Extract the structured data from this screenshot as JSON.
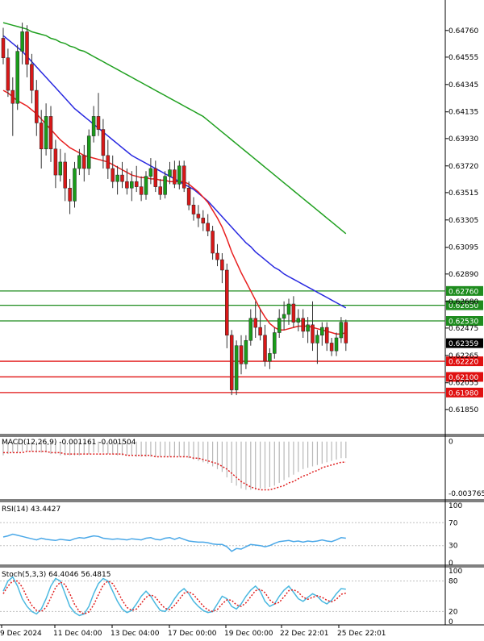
{
  "chart_data": {
    "type": "candlestick",
    "main": {
      "ylim": [
        0.6175,
        0.6487
      ],
      "y_ticks": [
        "0.64760",
        "0.64555",
        "0.64345",
        "0.64135",
        "0.63930",
        "0.63720",
        "0.63515",
        "0.63305",
        "0.63095",
        "0.62890",
        "0.62680",
        "0.62475",
        "0.62265",
        "0.62055",
        "0.61850"
      ],
      "current_price": "0.62359",
      "levels": [
        {
          "value": 0.6276,
          "label": "0.62760",
          "color": "#1e8c1e"
        },
        {
          "value": 0.6265,
          "label": "0.62650",
          "color": "#1e8c1e"
        },
        {
          "value": 0.6253,
          "label": "0.62530",
          "color": "#1e8c1e"
        },
        {
          "value": 0.6222,
          "label": "0.62220",
          "color": "#e01010"
        },
        {
          "value": 0.621,
          "label": "0.62100",
          "color": "#e01010"
        },
        {
          "value": 0.6198,
          "label": "0.61980",
          "color": "#e01010"
        }
      ],
      "candles": [
        [
          0.647,
          0.6478,
          0.645,
          0.6455
        ],
        [
          0.6455,
          0.6462,
          0.6425,
          0.643
        ],
        [
          0.643,
          0.644,
          0.6395,
          0.642
        ],
        [
          0.642,
          0.6465,
          0.6415,
          0.646
        ],
        [
          0.646,
          0.6482,
          0.645,
          0.6475
        ],
        [
          0.6475,
          0.648,
          0.644,
          0.645
        ],
        [
          0.645,
          0.6458,
          0.642,
          0.643
        ],
        [
          0.643,
          0.6438,
          0.6395,
          0.6405
        ],
        [
          0.6405,
          0.6415,
          0.637,
          0.6385
        ],
        [
          0.6385,
          0.642,
          0.638,
          0.641
        ],
        [
          0.641,
          0.6418,
          0.6375,
          0.6385
        ],
        [
          0.6385,
          0.6392,
          0.6355,
          0.6365
        ],
        [
          0.6365,
          0.6385,
          0.636,
          0.6375
        ],
        [
          0.6375,
          0.6382,
          0.6345,
          0.6355
        ],
        [
          0.6355,
          0.6362,
          0.6335,
          0.6345
        ],
        [
          0.6345,
          0.6375,
          0.634,
          0.637
        ],
        [
          0.637,
          0.6385,
          0.6365,
          0.638
        ],
        [
          0.638,
          0.6388,
          0.636,
          0.637
        ],
        [
          0.637,
          0.64,
          0.6365,
          0.6395
        ],
        [
          0.6395,
          0.6418,
          0.639,
          0.641
        ],
        [
          0.641,
          0.6428,
          0.6395,
          0.64
        ],
        [
          0.64,
          0.6408,
          0.637,
          0.638
        ],
        [
          0.638,
          0.6392,
          0.6362,
          0.637
        ],
        [
          0.637,
          0.638,
          0.6355,
          0.636
        ],
        [
          0.636,
          0.6372,
          0.635,
          0.6365
        ],
        [
          0.6365,
          0.6375,
          0.6355,
          0.636
        ],
        [
          0.636,
          0.637,
          0.635,
          0.6355
        ],
        [
          0.6355,
          0.6368,
          0.6345,
          0.636
        ],
        [
          0.636,
          0.6372,
          0.6352,
          0.6356
        ],
        [
          0.6356,
          0.6364,
          0.6345,
          0.635
        ],
        [
          0.635,
          0.6368,
          0.6346,
          0.6364
        ],
        [
          0.6364,
          0.6378,
          0.6358,
          0.637
        ],
        [
          0.637,
          0.6376,
          0.6352,
          0.6356
        ],
        [
          0.6356,
          0.6362,
          0.6346,
          0.635
        ],
        [
          0.635,
          0.6368,
          0.6347,
          0.6364
        ],
        [
          0.6364,
          0.6375,
          0.6358,
          0.6369
        ],
        [
          0.6369,
          0.6376,
          0.6355,
          0.6358
        ],
        [
          0.6358,
          0.6376,
          0.6354,
          0.6372
        ],
        [
          0.6372,
          0.6376,
          0.6352,
          0.6355
        ],
        [
          0.6355,
          0.636,
          0.6338,
          0.6342
        ],
        [
          0.6342,
          0.6348,
          0.633,
          0.6335
        ],
        [
          0.6335,
          0.6342,
          0.6325,
          0.6332
        ],
        [
          0.6332,
          0.6338,
          0.6322,
          0.6328
        ],
        [
          0.6328,
          0.6335,
          0.6318,
          0.6322
        ],
        [
          0.6322,
          0.6326,
          0.63,
          0.6305
        ],
        [
          0.6305,
          0.6312,
          0.6295,
          0.63
        ],
        [
          0.63,
          0.6305,
          0.6282,
          0.6292
        ],
        [
          0.6292,
          0.6297,
          0.6232,
          0.6242
        ],
        [
          0.6242,
          0.6246,
          0.6196,
          0.62
        ],
        [
          0.62,
          0.6238,
          0.6196,
          0.6234
        ],
        [
          0.6234,
          0.6242,
          0.6212,
          0.622
        ],
        [
          0.622,
          0.6242,
          0.6216,
          0.6238
        ],
        [
          0.6238,
          0.6262,
          0.6234,
          0.6255
        ],
        [
          0.6255,
          0.6268,
          0.624,
          0.6248
        ],
        [
          0.6248,
          0.6262,
          0.6238,
          0.6242
        ],
        [
          0.6242,
          0.625,
          0.6218,
          0.6222
        ],
        [
          0.6222,
          0.6232,
          0.6216,
          0.6228
        ],
        [
          0.6228,
          0.6248,
          0.6224,
          0.6244
        ],
        [
          0.6244,
          0.6262,
          0.624,
          0.6255
        ],
        [
          0.6255,
          0.6268,
          0.6246,
          0.6258
        ],
        [
          0.6258,
          0.627,
          0.625,
          0.6266
        ],
        [
          0.6266,
          0.6272,
          0.6248,
          0.6252
        ],
        [
          0.6252,
          0.6262,
          0.6245,
          0.6255
        ],
        [
          0.6255,
          0.6262,
          0.624,
          0.6245
        ],
        [
          0.6245,
          0.6256,
          0.6236,
          0.625
        ],
        [
          0.625,
          0.6268,
          0.623,
          0.6236
        ],
        [
          0.6236,
          0.6246,
          0.622,
          0.6242
        ],
        [
          0.6242,
          0.6252,
          0.6234,
          0.6248
        ],
        [
          0.6248,
          0.6252,
          0.623,
          0.6236
        ],
        [
          0.6236,
          0.624,
          0.6226,
          0.623
        ],
        [
          0.623,
          0.6244,
          0.6226,
          0.624
        ],
        [
          0.624,
          0.6256,
          0.6236,
          0.6252
        ],
        [
          0.6252,
          0.6254,
          0.623,
          0.6236
        ]
      ],
      "ma_fast": [
        0.643,
        0.6428,
        0.6425,
        0.6422,
        0.642,
        0.6418,
        0.6415,
        0.6412,
        0.6408,
        0.6404,
        0.64,
        0.6396,
        0.6392,
        0.6389,
        0.6386,
        0.6384,
        0.6382,
        0.638,
        0.6379,
        0.6378,
        0.6377,
        0.6376,
        0.6375,
        0.6373,
        0.6371,
        0.6369,
        0.6367,
        0.6365,
        0.6364,
        0.6363,
        0.6363,
        0.6362,
        0.6362,
        0.6361,
        0.6361,
        0.636,
        0.636,
        0.636,
        0.636,
        0.6358,
        0.6355,
        0.6352,
        0.6348,
        0.6344,
        0.6338,
        0.6332,
        0.6325,
        0.6316,
        0.6306,
        0.6298,
        0.629,
        0.6283,
        0.6276,
        0.6269,
        0.6262,
        0.6256,
        0.6251,
        0.6248,
        0.6246,
        0.6246,
        0.6247,
        0.6248,
        0.6249,
        0.6249,
        0.6249,
        0.6248,
        0.6247,
        0.6246,
        0.6245,
        0.6244,
        0.6243,
        0.6243,
        0.6244
      ],
      "ma_mid": [
        0.6472,
        0.6469,
        0.6466,
        0.6463,
        0.646,
        0.6456,
        0.6452,
        0.6448,
        0.6444,
        0.644,
        0.6436,
        0.6432,
        0.6428,
        0.6424,
        0.642,
        0.6416,
        0.6413,
        0.641,
        0.6407,
        0.6404,
        0.6401,
        0.6398,
        0.6395,
        0.6392,
        0.6389,
        0.6386,
        0.6383,
        0.638,
        0.6378,
        0.6376,
        0.6374,
        0.6372,
        0.637,
        0.6368,
        0.6366,
        0.6364,
        0.6362,
        0.636,
        0.6358,
        0.6356,
        0.6354,
        0.6351,
        0.6348,
        0.6345,
        0.6341,
        0.6337,
        0.6333,
        0.6329,
        0.6325,
        0.6321,
        0.6317,
        0.6313,
        0.631,
        0.6306,
        0.6303,
        0.63,
        0.6297,
        0.6294,
        0.6292,
        0.6289,
        0.6287,
        0.6285,
        0.6283,
        0.6281,
        0.6279,
        0.6277,
        0.6275,
        0.6273,
        0.6271,
        0.6269,
        0.6267,
        0.6265,
        0.6263
      ],
      "ma_slow": [
        0.6482,
        0.6481,
        0.648,
        0.6479,
        0.6478,
        0.6477,
        0.6475,
        0.6474,
        0.6473,
        0.6472,
        0.647,
        0.6469,
        0.6467,
        0.6466,
        0.6464,
        0.6463,
        0.6461,
        0.646,
        0.6458,
        0.6456,
        0.6454,
        0.6452,
        0.645,
        0.6448,
        0.6446,
        0.6444,
        0.6442,
        0.644,
        0.6438,
        0.6436,
        0.6434,
        0.6432,
        0.643,
        0.6428,
        0.6426,
        0.6424,
        0.6422,
        0.642,
        0.6418,
        0.6416,
        0.6414,
        0.6412,
        0.641,
        0.6407,
        0.6404,
        0.6401,
        0.6398,
        0.6395,
        0.6392,
        0.6389,
        0.6386,
        0.6383,
        0.638,
        0.6377,
        0.6374,
        0.6371,
        0.6368,
        0.6365,
        0.6362,
        0.6359,
        0.6356,
        0.6353,
        0.635,
        0.6347,
        0.6344,
        0.6341,
        0.6338,
        0.6335,
        0.6332,
        0.6329,
        0.6326,
        0.6323,
        0.632
      ],
      "colors": {
        "bull": "#1a9c1a",
        "bear": "#d81818",
        "ma_fast": "#e82020",
        "ma_mid": "#2828e0",
        "ma_slow": "#20a020"
      }
    },
    "macd": {
      "label": "MACD(12,26,9) -0.001161 -0.001504",
      "ylim": [
        -0.004,
        0.0001
      ],
      "y_ticks": [
        "0",
        "-0.003765"
      ],
      "histogram": [
        -0.001,
        -0.0009,
        -0.0008,
        -0.0008,
        -0.0007,
        -0.0007,
        -0.0007,
        -0.0008,
        -0.0008,
        -0.0008,
        -0.0009,
        -0.0009,
        -0.001,
        -0.001,
        -0.001,
        -0.001,
        -0.001,
        -0.0009,
        -0.0009,
        -0.0008,
        -0.0008,
        -0.0008,
        -0.0009,
        -0.0009,
        -0.001,
        -0.001,
        -0.001,
        -0.001,
        -0.0011,
        -0.0011,
        -0.0011,
        -0.0011,
        -0.0011,
        -0.0011,
        -0.0011,
        -0.0011,
        -0.0011,
        -0.0011,
        -0.0011,
        -0.0012,
        -0.0013,
        -0.0014,
        -0.0015,
        -0.0016,
        -0.0018,
        -0.002,
        -0.0022,
        -0.0026,
        -0.003,
        -0.0032,
        -0.0034,
        -0.0035,
        -0.0035,
        -0.0035,
        -0.0034,
        -0.0034,
        -0.0033,
        -0.0032,
        -0.003,
        -0.0028,
        -0.0026,
        -0.0024,
        -0.0022,
        -0.002,
        -0.0019,
        -0.0018,
        -0.0017,
        -0.0016,
        -0.0015,
        -0.0014,
        -0.0013,
        -0.0012,
        -0.0012
      ],
      "signal": [
        -0.0008,
        -0.0008,
        -0.0008,
        -0.0008,
        -0.0008,
        -0.0007,
        -0.0007,
        -0.0007,
        -0.0007,
        -0.0007,
        -0.0008,
        -0.0008,
        -0.0008,
        -0.0009,
        -0.0009,
        -0.0009,
        -0.0009,
        -0.0009,
        -0.0009,
        -0.0009,
        -0.0009,
        -0.0009,
        -0.0009,
        -0.0009,
        -0.0009,
        -0.0009,
        -0.001,
        -0.001,
        -0.001,
        -0.001,
        -0.001,
        -0.001,
        -0.0011,
        -0.0011,
        -0.0011,
        -0.0011,
        -0.0011,
        -0.0011,
        -0.0011,
        -0.0011,
        -0.0012,
        -0.0012,
        -0.0013,
        -0.0014,
        -0.0015,
        -0.0016,
        -0.0018,
        -0.002,
        -0.0023,
        -0.0026,
        -0.0029,
        -0.0031,
        -0.0033,
        -0.0034,
        -0.0035,
        -0.0035,
        -0.0035,
        -0.0034,
        -0.0033,
        -0.0032,
        -0.003,
        -0.0029,
        -0.0027,
        -0.0025,
        -0.0024,
        -0.0022,
        -0.0021,
        -0.0019,
        -0.0018,
        -0.0017,
        -0.0016,
        -0.0015,
        -0.0015
      ]
    },
    "rsi": {
      "label": "RSI(14) 43.4427",
      "ylim": [
        0,
        100
      ],
      "y_ticks": [
        "100",
        "70",
        "30",
        "0"
      ],
      "values": [
        45,
        47,
        50,
        48,
        46,
        44,
        42,
        40,
        43,
        41,
        40,
        39,
        41,
        40,
        39,
        42,
        44,
        43,
        45,
        47,
        46,
        43,
        42,
        41,
        42,
        41,
        40,
        42,
        41,
        40,
        43,
        44,
        41,
        40,
        43,
        44,
        41,
        44,
        41,
        38,
        37,
        36,
        36,
        35,
        33,
        32,
        32,
        28,
        20,
        25,
        24,
        28,
        32,
        31,
        30,
        28,
        30,
        34,
        37,
        38,
        39,
        37,
        38,
        36,
        38,
        37,
        38,
        40,
        38,
        37,
        40,
        44,
        43
      ]
    },
    "stoch": {
      "label": "Stoch(5,3,3) 64.4046 56.4815",
      "ylim": [
        0,
        100
      ],
      "y_ticks": [
        "100",
        "80",
        "20",
        "0"
      ],
      "k": [
        60,
        80,
        88,
        70,
        45,
        30,
        20,
        15,
        25,
        45,
        70,
        85,
        80,
        55,
        30,
        18,
        12,
        15,
        30,
        55,
        75,
        85,
        80,
        60,
        40,
        25,
        18,
        22,
        35,
        50,
        60,
        50,
        35,
        22,
        20,
        30,
        45,
        58,
        65,
        55,
        40,
        30,
        22,
        18,
        20,
        35,
        50,
        45,
        30,
        25,
        35,
        50,
        62,
        70,
        60,
        40,
        30,
        35,
        50,
        62,
        70,
        58,
        45,
        40,
        48,
        55,
        50,
        40,
        35,
        42,
        55,
        65,
        64
      ],
      "d": [
        55,
        70,
        80,
        80,
        68,
        48,
        32,
        22,
        20,
        28,
        47,
        67,
        78,
        73,
        55,
        34,
        20,
        15,
        19,
        33,
        53,
        72,
        80,
        75,
        60,
        42,
        28,
        22,
        25,
        36,
        48,
        53,
        48,
        36,
        26,
        24,
        32,
        44,
        56,
        59,
        53,
        42,
        31,
        23,
        20,
        24,
        35,
        43,
        42,
        33,
        30,
        37,
        49,
        61,
        64,
        57,
        43,
        35,
        38,
        49,
        61,
        63,
        58,
        48,
        44,
        48,
        51,
        48,
        42,
        39,
        44,
        54,
        56
      ]
    },
    "x_labels": [
      "9 Dec 2024",
      "11 Dec 04:00",
      "13 Dec 04:00",
      "17 Dec 00:00",
      "19 Dec 00:00",
      "22 Dec 22:01",
      "25 Dec 22:01"
    ]
  }
}
